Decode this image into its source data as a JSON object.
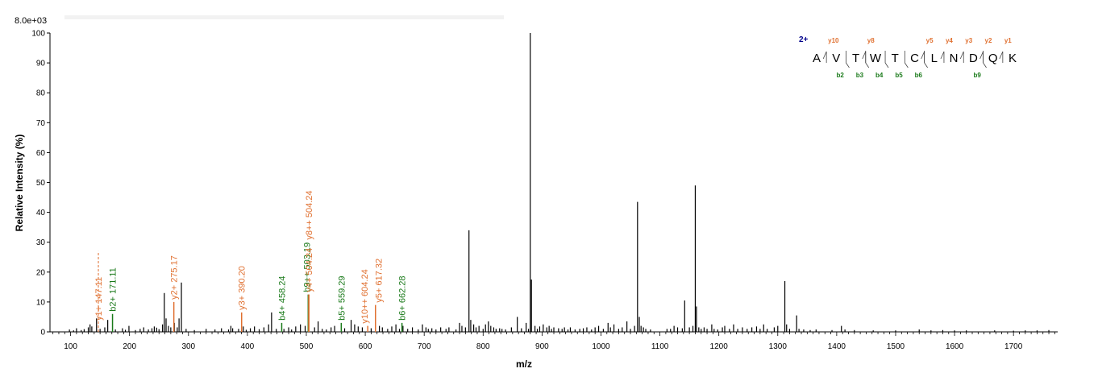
{
  "chart_data": {
    "type": "bar",
    "scale_label": "8.0e+03",
    "xlabel": "m/z",
    "ylabel": "Relative   Intensity (%)",
    "xlim": [
      65,
      1775
    ],
    "ylim": [
      0,
      100
    ],
    "x_ticks": [
      100,
      200,
      300,
      400,
      500,
      600,
      700,
      800,
      900,
      1000,
      1100,
      1200,
      1300,
      1400,
      1500,
      1600,
      1700
    ],
    "y_ticks": [
      0,
      10,
      20,
      30,
      40,
      50,
      60,
      70,
      80,
      90,
      100
    ],
    "colors": {
      "b_ion": "#1a7a1a",
      "y_ion": "#e07030",
      "peak": "#000000",
      "charge": "#00008b"
    },
    "peaks": [
      [
        98,
        0.8
      ],
      [
        105,
        0.5
      ],
      [
        110,
        1.2
      ],
      [
        118,
        0.6
      ],
      [
        123,
        0.9
      ],
      [
        130,
        1.5
      ],
      [
        133,
        2.5
      ],
      [
        136,
        1.8
      ],
      [
        144,
        4.5
      ],
      [
        150,
        1.0
      ],
      [
        158,
        1.5
      ],
      [
        163,
        4.0
      ],
      [
        176,
        0.8
      ],
      [
        188,
        1.2
      ],
      [
        193,
        0.7
      ],
      [
        199,
        2.0
      ],
      [
        210,
        0.6
      ],
      [
        218,
        1.0
      ],
      [
        224,
        1.5
      ],
      [
        232,
        0.8
      ],
      [
        238,
        1.2
      ],
      [
        242,
        1.8
      ],
      [
        246,
        1.4
      ],
      [
        250,
        0.9
      ],
      [
        256,
        2.5
      ],
      [
        259,
        13.0
      ],
      [
        262,
        4.5
      ],
      [
        266,
        2.0
      ],
      [
        270,
        1.5
      ],
      [
        276,
        3.0
      ],
      [
        281,
        1.5
      ],
      [
        284,
        4.5
      ],
      [
        288,
        16.5
      ],
      [
        296,
        1.0
      ],
      [
        310,
        0.6
      ],
      [
        330,
        1.0
      ],
      [
        345,
        0.8
      ],
      [
        356,
        1.2
      ],
      [
        368,
        0.8
      ],
      [
        372,
        2.0
      ],
      [
        375,
        1.2
      ],
      [
        385,
        1.0
      ],
      [
        393,
        1.8
      ],
      [
        398,
        0.7
      ],
      [
        405,
        1.2
      ],
      [
        412,
        1.8
      ],
      [
        420,
        0.9
      ],
      [
        428,
        1.5
      ],
      [
        436,
        2.5
      ],
      [
        441,
        6.5
      ],
      [
        449,
        1.0
      ],
      [
        462,
        1.0
      ],
      [
        470,
        1.5
      ],
      [
        475,
        0.8
      ],
      [
        482,
        1.8
      ],
      [
        490,
        2.5
      ],
      [
        498,
        2.0
      ],
      [
        514,
        1.5
      ],
      [
        520,
        3.5
      ],
      [
        527,
        1.0
      ],
      [
        534,
        0.8
      ],
      [
        542,
        1.5
      ],
      [
        548,
        2.0
      ],
      [
        565,
        1.2
      ],
      [
        576,
        4.0
      ],
      [
        582,
        2.5
      ],
      [
        588,
        1.8
      ],
      [
        595,
        1.5
      ],
      [
        610,
        1.2
      ],
      [
        624,
        2.0
      ],
      [
        629,
        1.5
      ],
      [
        638,
        1.0
      ],
      [
        645,
        1.8
      ],
      [
        652,
        2.5
      ],
      [
        658,
        1.0
      ],
      [
        664,
        2.0
      ],
      [
        672,
        1.0
      ],
      [
        680,
        1.5
      ],
      [
        690,
        0.8
      ],
      [
        697,
        2.5
      ],
      [
        703,
        1.5
      ],
      [
        707,
        1.0
      ],
      [
        713,
        1.2
      ],
      [
        720,
        0.8
      ],
      [
        728,
        1.5
      ],
      [
        737,
        1.0
      ],
      [
        742,
        1.5
      ],
      [
        754,
        0.8
      ],
      [
        760,
        3.0
      ],
      [
        764,
        2.0
      ],
      [
        770,
        1.5
      ],
      [
        776,
        34.0
      ],
      [
        779,
        4.0
      ],
      [
        784,
        2.5
      ],
      [
        788,
        1.5
      ],
      [
        793,
        2.0
      ],
      [
        800,
        1.0
      ],
      [
        804,
        2.5
      ],
      [
        809,
        3.5
      ],
      [
        813,
        2.0
      ],
      [
        818,
        1.5
      ],
      [
        822,
        1.0
      ],
      [
        828,
        1.2
      ],
      [
        832,
        1.0
      ],
      [
        838,
        0.8
      ],
      [
        848,
        1.5
      ],
      [
        858,
        5.0
      ],
      [
        865,
        1.2
      ],
      [
        873,
        3.0
      ],
      [
        877,
        1.0
      ],
      [
        880,
        100
      ],
      [
        882,
        17.5
      ],
      [
        888,
        2.0
      ],
      [
        892,
        1.0
      ],
      [
        896,
        1.8
      ],
      [
        902,
        2.5
      ],
      [
        908,
        1.5
      ],
      [
        912,
        2.0
      ],
      [
        916,
        1.0
      ],
      [
        920,
        1.5
      ],
      [
        928,
        1.2
      ],
      [
        934,
        1.0
      ],
      [
        938,
        1.5
      ],
      [
        944,
        0.8
      ],
      [
        948,
        1.5
      ],
      [
        956,
        0.8
      ],
      [
        964,
        1.0
      ],
      [
        970,
        1.2
      ],
      [
        976,
        1.5
      ],
      [
        984,
        0.8
      ],
      [
        990,
        1.5
      ],
      [
        996,
        2.0
      ],
      [
        1004,
        1.0
      ],
      [
        1012,
        3.0
      ],
      [
        1016,
        1.5
      ],
      [
        1022,
        2.5
      ],
      [
        1030,
        1.0
      ],
      [
        1036,
        1.5
      ],
      [
        1044,
        3.5
      ],
      [
        1050,
        1.0
      ],
      [
        1057,
        2.0
      ],
      [
        1062,
        43.5
      ],
      [
        1065,
        5.0
      ],
      [
        1068,
        2.0
      ],
      [
        1072,
        1.5
      ],
      [
        1076,
        1.0
      ],
      [
        1084,
        0.8
      ],
      [
        1112,
        1.0
      ],
      [
        1118,
        1.0
      ],
      [
        1124,
        2.0
      ],
      [
        1130,
        1.5
      ],
      [
        1138,
        1.2
      ],
      [
        1142,
        10.5
      ],
      [
        1150,
        1.5
      ],
      [
        1156,
        2.0
      ],
      [
        1160,
        49.0
      ],
      [
        1162,
        8.5
      ],
      [
        1166,
        1.5
      ],
      [
        1170,
        1.0
      ],
      [
        1175,
        1.5
      ],
      [
        1180,
        1.0
      ],
      [
        1188,
        2.5
      ],
      [
        1192,
        1.0
      ],
      [
        1198,
        0.8
      ],
      [
        1206,
        1.5
      ],
      [
        1210,
        2.0
      ],
      [
        1218,
        1.0
      ],
      [
        1225,
        2.5
      ],
      [
        1232,
        1.0
      ],
      [
        1240,
        1.5
      ],
      [
        1248,
        1.0
      ],
      [
        1256,
        1.5
      ],
      [
        1264,
        1.8
      ],
      [
        1270,
        1.0
      ],
      [
        1276,
        2.5
      ],
      [
        1282,
        1.0
      ],
      [
        1294,
        1.5
      ],
      [
        1300,
        2.0
      ],
      [
        1312,
        17.0
      ],
      [
        1315,
        2.5
      ],
      [
        1320,
        1.0
      ],
      [
        1332,
        5.5
      ],
      [
        1336,
        1.0
      ],
      [
        1344,
        0.8
      ],
      [
        1355,
        0.6
      ],
      [
        1365,
        0.8
      ],
      [
        1392,
        0.6
      ],
      [
        1408,
        2.0
      ],
      [
        1414,
        0.8
      ],
      [
        1430,
        0.6
      ],
      [
        1462,
        0.5
      ],
      [
        1500,
        0.5
      ],
      [
        1540,
        0.8
      ],
      [
        1560,
        0.5
      ],
      [
        1580,
        0.6
      ],
      [
        1600,
        0.5
      ],
      [
        1620,
        0.5
      ],
      [
        1668,
        0.5
      ],
      [
        1700,
        0.4
      ],
      [
        1720,
        0.5
      ],
      [
        1740,
        0.5
      ],
      [
        1760,
        0.6
      ]
    ],
    "annotations": [
      {
        "label": "y1+ 147.11",
        "mz": 147.11,
        "intensity": 27,
        "ion": "y",
        "dashed": true
      },
      {
        "label": "b2+ 171.11",
        "mz": 171.11,
        "intensity": 6,
        "ion": "b",
        "dashed": false
      },
      {
        "label": "y2+ 275.17",
        "mz": 275.17,
        "intensity": 10,
        "ion": "y",
        "dashed": false
      },
      {
        "label": "y3+ 390.20",
        "mz": 390.2,
        "intensity": 6.5,
        "ion": "y",
        "dashed": false
      },
      {
        "label": "b4+ 458.24",
        "mz": 458.24,
        "intensity": 3,
        "ion": "b",
        "dashed": false
      },
      {
        "label": "b9++ 503.19",
        "mz": 503.19,
        "intensity": 12.5,
        "ion": "b",
        "dashed": false
      },
      {
        "label": "y4+ 504.24",
        "mz": 504.24,
        "intensity": 12.5,
        "ion": "y",
        "dashed": false
      },
      {
        "label": "y8++ 504.24",
        "mz": 504.24,
        "intensity": 12.5,
        "ion": "y",
        "dashed": false
      },
      {
        "label": "b5+ 559.29",
        "mz": 559.29,
        "intensity": 3,
        "ion": "b",
        "dashed": false
      },
      {
        "label": "y10++ 604.24",
        "mz": 604.24,
        "intensity": 2,
        "ion": "y",
        "dashed": false
      },
      {
        "label": "y5+ 617.32",
        "mz": 617.32,
        "intensity": 9,
        "ion": "y",
        "dashed": false
      },
      {
        "label": "b6+ 662.28",
        "mz": 662.28,
        "intensity": 3,
        "ion": "b",
        "dashed": false
      }
    ],
    "sequence": {
      "charge": "2+",
      "residues": [
        "A",
        "V",
        "T",
        "W",
        "T",
        "C",
        "L",
        "N",
        "D",
        "Q",
        "K"
      ],
      "y_ions": [
        {
          "after": 0,
          "label": "y10"
        },
        {
          "after": 2,
          "label": "y8"
        },
        {
          "after": 5,
          "label": "y5"
        },
        {
          "after": 6,
          "label": "y4"
        },
        {
          "after": 7,
          "label": "y3"
        },
        {
          "after": 8,
          "label": "y2"
        },
        {
          "after": 9,
          "label": "y1"
        }
      ],
      "b_ions": [
        {
          "after": 1,
          "label": "b2"
        },
        {
          "after": 2,
          "label": "b3"
        },
        {
          "after": 3,
          "label": "b4"
        },
        {
          "after": 4,
          "label": "b5"
        },
        {
          "after": 5,
          "label": "b6"
        },
        {
          "after": 8,
          "label": "b9"
        }
      ]
    }
  }
}
